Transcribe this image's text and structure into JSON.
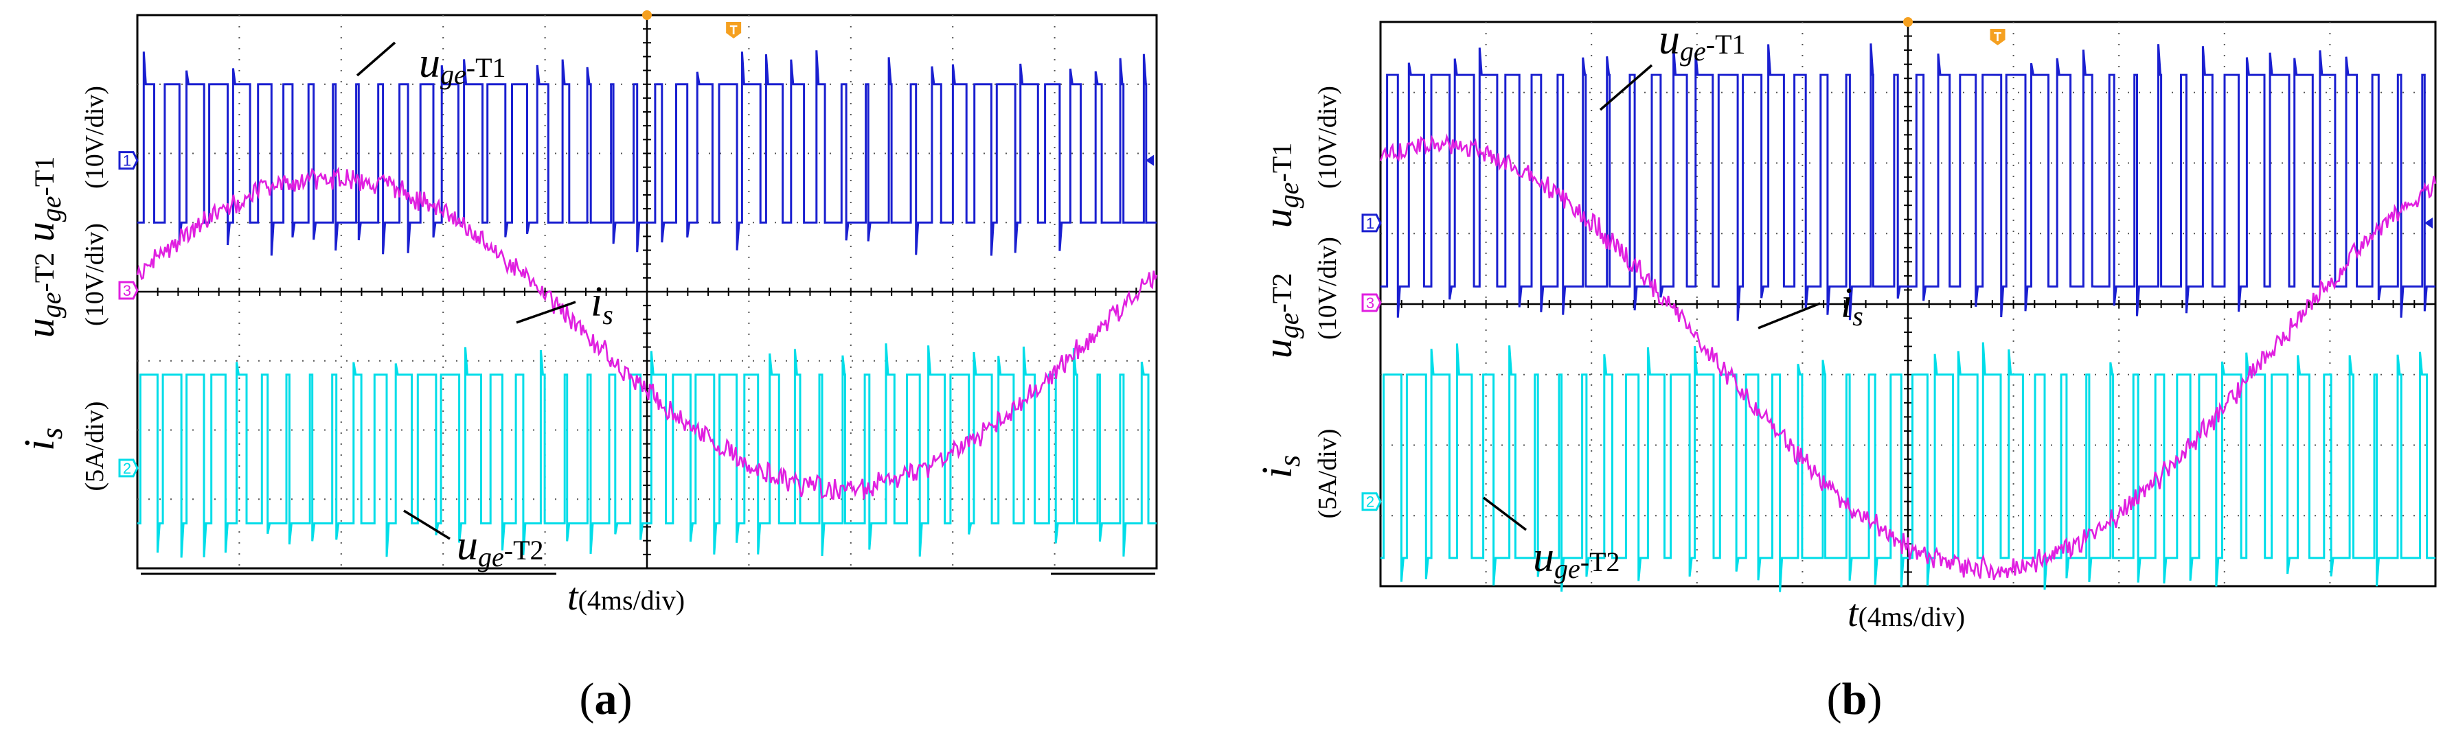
{
  "chart_data": [
    {
      "id": "a",
      "type": "line",
      "subplot_label": "(a)",
      "xlabel": {
        "symbol": "t",
        "unit": "(4ms/div)"
      },
      "ylabels": [
        {
          "symbol": "u",
          "sub": "ge",
          "suffix": "-T1",
          "scale": "(10V/div)"
        },
        {
          "symbol": "u",
          "sub": "ge",
          "suffix": "-T2",
          "scale": "(10V/div)"
        },
        {
          "symbol": "i",
          "sub": "s",
          "suffix": "",
          "scale": "(5A/div)"
        }
      ],
      "annotations": [
        {
          "symbol": "u",
          "sub": "ge",
          "suffix": "-T1",
          "target": "ch1"
        },
        {
          "symbol": "i",
          "sub": "s",
          "suffix": "",
          "target": "current"
        },
        {
          "symbol": "u",
          "sub": "ge",
          "suffix": "-T2",
          "target": "ch2"
        }
      ],
      "channel_markers": [
        "1",
        "3",
        "2"
      ],
      "trigger_marker": "T",
      "grid": {
        "x_divisions": 10,
        "y_divisions": 8
      },
      "series": [
        {
          "name": "u_ge-T1",
          "channel": 1,
          "color": "#1a1fd0",
          "kind": "pwm",
          "low_div": 3.0,
          "high_div": 1.0,
          "pulses_per_period": 22
        },
        {
          "name": "u_ge-T2",
          "channel": 2,
          "color": "#00dde8",
          "kind": "pwm",
          "low_div": 7.35,
          "high_div": 5.2,
          "pulses_per_period": 22
        },
        {
          "name": "i_s",
          "channel": 3,
          "color": "#e01fe0",
          "kind": "sine",
          "period_div": 10,
          "phase_div": -0.6,
          "center_div": 4.6,
          "amplitude_div": 2.25
        }
      ]
    },
    {
      "id": "b",
      "type": "line",
      "subplot_label": "(b)",
      "xlabel": {
        "symbol": "t",
        "unit": "(4ms/div)"
      },
      "ylabels": [
        {
          "symbol": "u",
          "sub": "ge",
          "suffix": "-T1",
          "scale": "(10V/div)"
        },
        {
          "symbol": "u",
          "sub": "ge",
          "suffix": "-T2",
          "scale": "(10V/div)"
        },
        {
          "symbol": "i",
          "sub": "s",
          "suffix": "",
          "scale": "(5A/div)"
        }
      ],
      "annotations": [
        {
          "symbol": "u",
          "sub": "ge",
          "suffix": "-T1",
          "target": "ch1"
        },
        {
          "symbol": "i",
          "sub": "s",
          "suffix": "",
          "target": "current"
        },
        {
          "symbol": "u",
          "sub": "ge",
          "suffix": "-T2",
          "target": "ch2"
        }
      ],
      "channel_markers": [
        "1",
        "3",
        "2"
      ],
      "trigger_marker": "T",
      "grid": {
        "x_divisions": 10,
        "y_divisions": 8
      },
      "series": [
        {
          "name": "u_ge-T1",
          "channel": 1,
          "color": "#1a1fd0",
          "kind": "pwm",
          "low_div": 3.75,
          "high_div": 0.75,
          "pulses_per_period": 22
        },
        {
          "name": "u_ge-T2",
          "channel": 2,
          "color": "#00dde8",
          "kind": "pwm",
          "low_div": 7.6,
          "high_div": 5.0,
          "pulses_per_period": 22
        },
        {
          "name": "i_s",
          "channel": 3,
          "color": "#e01fe0",
          "kind": "sine",
          "period_div": 10.5,
          "phase_div": -2.1,
          "center_div": 4.75,
          "amplitude_div": 3.0
        }
      ]
    }
  ]
}
